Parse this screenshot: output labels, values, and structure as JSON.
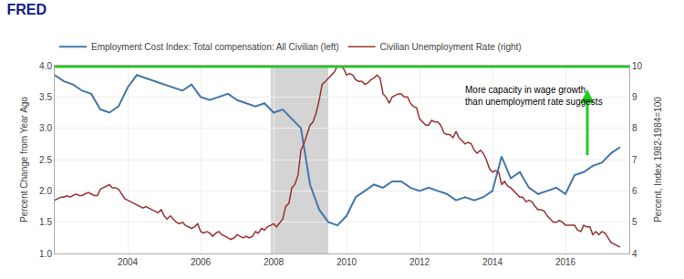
{
  "chart_data": {
    "type": "line",
    "title": "FRED",
    "ylabel": "Percent Change from Year Ago",
    "y2label": "Percent, Index 1982-1984=100",
    "xlim": [
      2002.0,
      2017.75
    ],
    "xticks": [
      2004,
      2006,
      2008,
      2010,
      2012,
      2014,
      2016
    ],
    "ylim": [
      1.0,
      4.0
    ],
    "yticks": [
      {
        "value": 1.0,
        "label": "1.0"
      },
      1.5,
      {
        "value": 2.0,
        "label": "2.0"
      },
      2.5,
      {
        "value": 3.0,
        "label": "3.0"
      },
      3.5,
      {
        "value": 4.0,
        "label": "4.0"
      }
    ],
    "y2lim": [
      4.0,
      10.0
    ],
    "y2ticks": [
      4,
      5,
      6,
      7,
      8,
      9,
      10
    ],
    "grid": true,
    "legend": "top left",
    "spans": [
      {
        "x0": 2007.92,
        "x1": 2009.5,
        "color": "#cccccc"
      }
    ],
    "hlines": [
      {
        "y": 4.0,
        "color": "#22cc22"
      }
    ],
    "annotations": [
      {
        "text": "More capacity in wage growth\nthan unemployment rate suggests",
        "x": 2013.2,
        "y": 3.72
      }
    ],
    "arrows": [
      {
        "x": 2016.6,
        "y_start": 2.55,
        "y_end": 3.62,
        "color": "#22cc22"
      }
    ],
    "series": [
      {
        "name": "Employment Cost Index: Total compensation: All Civilian (left)",
        "color": "#4477aa",
        "x": [
          2002.0,
          2002.25,
          2002.5,
          2002.75,
          2003.0,
          2003.25,
          2003.5,
          2003.75,
          2004.0,
          2004.25,
          2004.5,
          2004.75,
          2005.0,
          2005.25,
          2005.5,
          2005.75,
          2006.0,
          2006.25,
          2006.5,
          2006.75,
          2007.0,
          2007.25,
          2007.5,
          2007.75,
          2008.0,
          2008.25,
          2008.5,
          2008.75,
          2009.0,
          2009.25,
          2009.5,
          2009.75,
          2010.0,
          2010.25,
          2010.5,
          2010.75,
          2011.0,
          2011.25,
          2011.5,
          2011.75,
          2012.0,
          2012.25,
          2012.5,
          2012.75,
          2013.0,
          2013.25,
          2013.5,
          2013.75,
          2014.0,
          2014.25,
          2014.5,
          2014.75,
          2015.0,
          2015.25,
          2015.5,
          2015.75,
          2016.0,
          2016.25,
          2016.5,
          2016.75,
          2017.0,
          2017.25,
          2017.5
        ],
        "values": [
          3.85,
          3.75,
          3.7,
          3.6,
          3.55,
          3.3,
          3.25,
          3.35,
          3.65,
          3.85,
          3.8,
          3.75,
          3.7,
          3.65,
          3.6,
          3.7,
          3.5,
          3.45,
          3.5,
          3.55,
          3.45,
          3.4,
          3.35,
          3.4,
          3.25,
          3.3,
          3.15,
          3.0,
          2.1,
          1.7,
          1.5,
          1.45,
          1.6,
          1.9,
          2.0,
          2.1,
          2.05,
          2.15,
          2.15,
          2.05,
          2.0,
          2.05,
          2.0,
          1.95,
          1.85,
          1.9,
          1.85,
          1.9,
          2.0,
          2.55,
          2.2,
          2.3,
          2.05,
          1.95,
          2.0,
          2.05,
          1.95,
          2.25,
          2.3,
          2.4,
          2.45,
          2.6,
          2.7
        ]
      },
      {
        "name": "Civilian Unemployment Rate (right)",
        "color": "#993333",
        "axis": "y2",
        "x": [
          2002.0,
          2002.08,
          2002.17,
          2002.25,
          2002.33,
          2002.42,
          2002.5,
          2002.58,
          2002.67,
          2002.75,
          2002.83,
          2002.92,
          2003.0,
          2003.08,
          2003.17,
          2003.25,
          2003.33,
          2003.42,
          2003.5,
          2003.58,
          2003.67,
          2003.75,
          2003.83,
          2003.92,
          2004.0,
          2004.08,
          2004.17,
          2004.25,
          2004.33,
          2004.42,
          2004.5,
          2004.58,
          2004.67,
          2004.75,
          2004.83,
          2004.92,
          2005.0,
          2005.08,
          2005.17,
          2005.25,
          2005.33,
          2005.42,
          2005.5,
          2005.58,
          2005.67,
          2005.75,
          2005.83,
          2005.92,
          2006.0,
          2006.08,
          2006.17,
          2006.25,
          2006.33,
          2006.42,
          2006.5,
          2006.58,
          2006.67,
          2006.75,
          2006.83,
          2006.92,
          2007.0,
          2007.08,
          2007.17,
          2007.25,
          2007.33,
          2007.42,
          2007.5,
          2007.58,
          2007.67,
          2007.75,
          2007.83,
          2007.92,
          2008.0,
          2008.08,
          2008.17,
          2008.25,
          2008.33,
          2008.42,
          2008.5,
          2008.58,
          2008.67,
          2008.75,
          2008.83,
          2008.92,
          2009.0,
          2009.08,
          2009.17,
          2009.25,
          2009.33,
          2009.42,
          2009.5,
          2009.58,
          2009.67,
          2009.75,
          2009.83,
          2009.92,
          2010.0,
          2010.08,
          2010.17,
          2010.25,
          2010.33,
          2010.42,
          2010.5,
          2010.58,
          2010.67,
          2010.75,
          2010.83,
          2010.92,
          2011.0,
          2011.08,
          2011.17,
          2011.25,
          2011.33,
          2011.42,
          2011.5,
          2011.58,
          2011.67,
          2011.75,
          2011.83,
          2011.92,
          2012.0,
          2012.08,
          2012.17,
          2012.25,
          2012.33,
          2012.42,
          2012.5,
          2012.58,
          2012.67,
          2012.75,
          2012.83,
          2012.92,
          2013.0,
          2013.08,
          2013.17,
          2013.25,
          2013.33,
          2013.42,
          2013.5,
          2013.58,
          2013.67,
          2013.75,
          2013.83,
          2013.92,
          2014.0,
          2014.08,
          2014.17,
          2014.25,
          2014.33,
          2014.42,
          2014.5,
          2014.58,
          2014.67,
          2014.75,
          2014.83,
          2014.92,
          2015.0,
          2015.08,
          2015.17,
          2015.25,
          2015.33,
          2015.42,
          2015.5,
          2015.58,
          2015.67,
          2015.75,
          2015.83,
          2015.92,
          2016.0,
          2016.08,
          2016.17,
          2016.25,
          2016.33,
          2016.42,
          2016.5,
          2016.58,
          2016.67,
          2016.75,
          2016.83,
          2016.92,
          2017.0,
          2017.08,
          2017.17,
          2017.25,
          2017.5
        ],
        "values": [
          5.7,
          5.75,
          5.8,
          5.8,
          5.85,
          5.8,
          5.85,
          5.9,
          5.85,
          5.85,
          5.9,
          5.95,
          5.9,
          5.85,
          5.85,
          6.05,
          6.1,
          6.15,
          6.2,
          6.1,
          6.1,
          6.05,
          5.9,
          5.75,
          5.7,
          5.65,
          5.6,
          5.55,
          5.5,
          5.45,
          5.5,
          5.45,
          5.4,
          5.35,
          5.3,
          5.4,
          5.2,
          5.1,
          5.2,
          5.1,
          5.0,
          4.95,
          5.0,
          4.9,
          4.85,
          4.8,
          4.85,
          4.95,
          4.7,
          4.65,
          4.7,
          4.65,
          4.55,
          4.65,
          4.7,
          4.6,
          4.55,
          4.5,
          4.45,
          4.5,
          4.6,
          4.55,
          4.5,
          4.55,
          4.5,
          4.55,
          4.7,
          4.65,
          4.8,
          4.75,
          4.85,
          4.9,
          4.95,
          4.85,
          5.0,
          5.1,
          5.5,
          5.6,
          6.1,
          6.2,
          6.5,
          7.3,
          7.5,
          7.8,
          8.1,
          8.2,
          8.5,
          8.9,
          9.4,
          9.5,
          9.6,
          9.7,
          9.8,
          10.0,
          10.0,
          9.9,
          9.7,
          9.75,
          9.7,
          9.55,
          9.5,
          9.5,
          9.4,
          9.45,
          9.55,
          9.6,
          9.7,
          9.6,
          9.1,
          9.0,
          8.8,
          9.0,
          9.05,
          9.1,
          9.1,
          9.0,
          9.0,
          8.8,
          8.7,
          8.65,
          8.3,
          8.2,
          8.1,
          8.1,
          8.25,
          8.2,
          8.2,
          8.1,
          7.85,
          7.8,
          7.8,
          7.7,
          7.9,
          7.7,
          7.6,
          7.5,
          7.55,
          7.5,
          7.3,
          7.2,
          7.3,
          7.2,
          7.0,
          6.7,
          6.6,
          6.65,
          6.6,
          6.2,
          6.3,
          6.15,
          6.1,
          6.0,
          5.9,
          5.8,
          5.8,
          5.65,
          5.7,
          5.65,
          5.5,
          5.4,
          5.4,
          5.35,
          5.2,
          5.1,
          5.0,
          5.0,
          5.05,
          5.0,
          4.9,
          4.9,
          4.9,
          4.9,
          4.75,
          4.7,
          4.9,
          4.85,
          4.85,
          4.6,
          4.7,
          4.6,
          4.7,
          4.65,
          4.5,
          4.35,
          4.2
        ]
      }
    ]
  }
}
